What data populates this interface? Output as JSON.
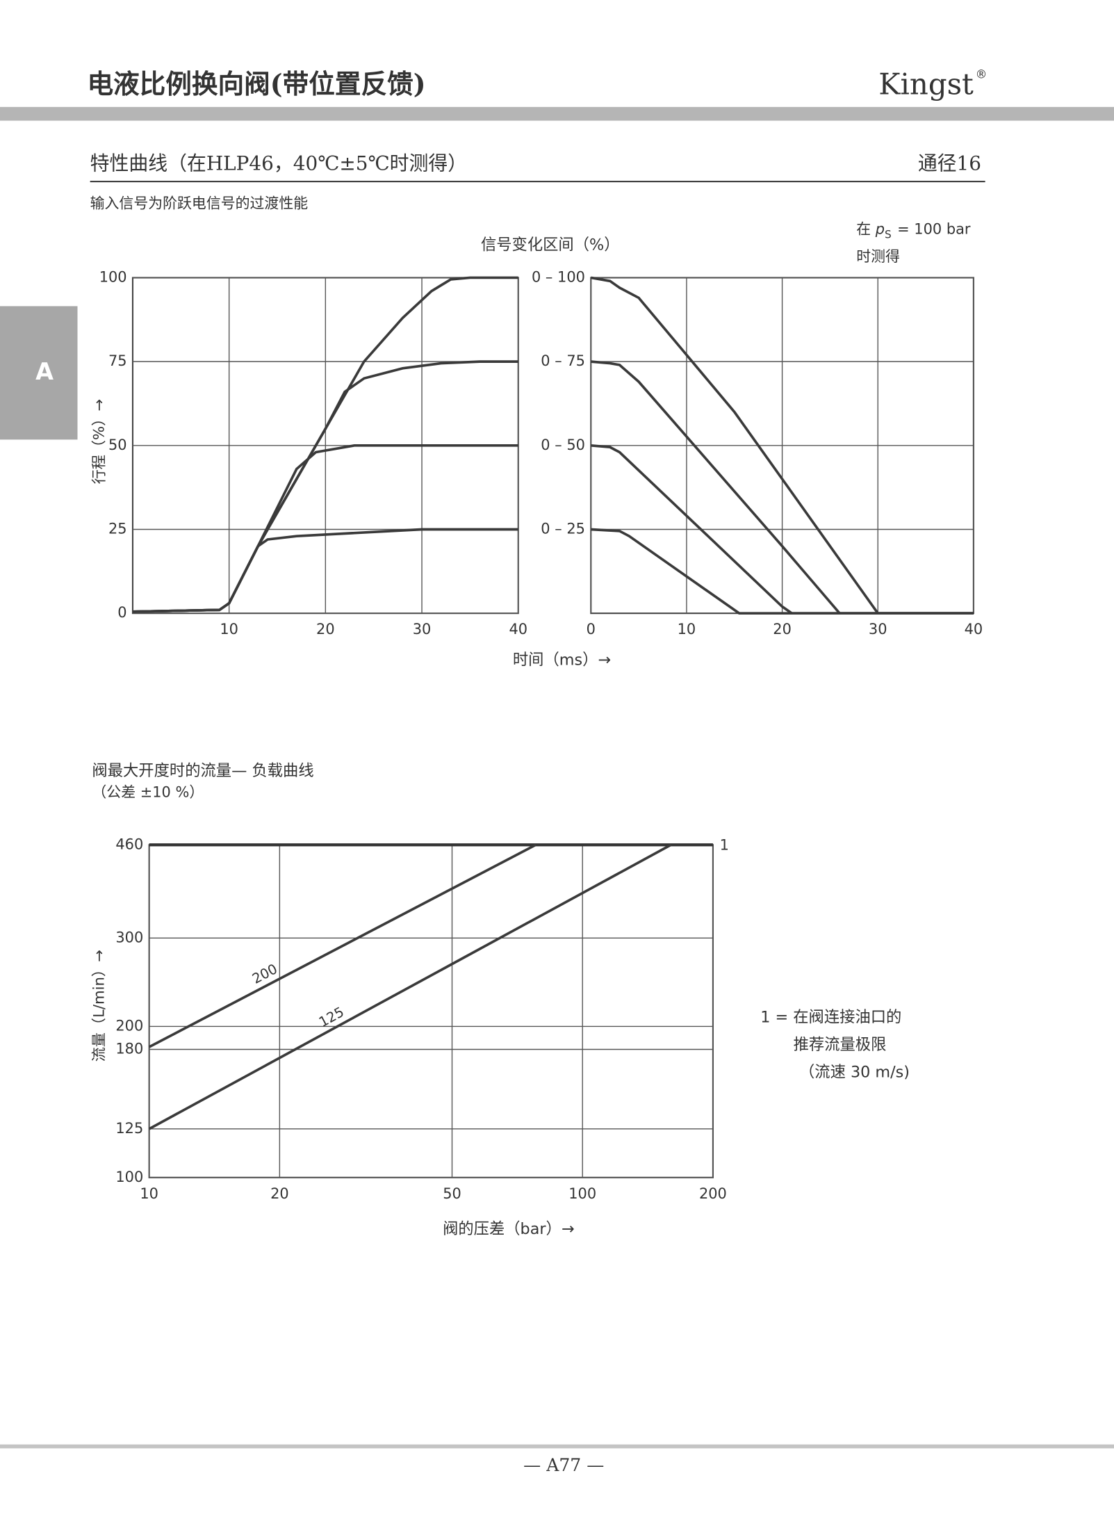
{
  "header": {
    "title": "电液比例换向阀(带位置反馈)",
    "brand": "Kingst",
    "brand_mark": "®",
    "section": "特性曲线（在HLP46，40℃±5℃时测得）",
    "size": "通径16",
    "tab": "A"
  },
  "subtitle": "输入信号为阶跃电信号的过渡性能",
  "note": {
    "pre": "在",
    "p": "p",
    "sub": "S",
    "post": "= 100 bar",
    "line2": "时测得"
  },
  "footer": "— A77 —",
  "chart_data": [
    {
      "type": "line",
      "ylabel": "行程（%）→",
      "xlabel": "时间（ms）→",
      "xlim": [
        0,
        40
      ],
      "ylim": [
        0,
        100
      ],
      "xticks": [
        10,
        20,
        30,
        40
      ],
      "yticks": [
        0,
        25,
        50,
        75,
        100
      ],
      "grid": true,
      "series": [
        {
          "color": "#3a3a3a",
          "x": [
            0,
            9,
            10,
            13,
            17,
            20,
            24,
            28,
            31,
            33,
            35,
            40
          ],
          "values": [
            0.5,
            1,
            3,
            20,
            40,
            55,
            75,
            88,
            96,
            99.5,
            100,
            100
          ]
        },
        {
          "color": "#3a3a3a",
          "x": [
            0,
            9,
            10,
            13,
            17,
            20,
            22,
            24,
            28,
            32,
            36,
            40
          ],
          "values": [
            0.5,
            1,
            3,
            20,
            40,
            55,
            66,
            70,
            73,
            74.5,
            75,
            75
          ]
        },
        {
          "color": "#3a3a3a",
          "x": [
            0,
            9,
            10,
            13,
            17,
            19,
            23,
            40
          ],
          "values": [
            0.5,
            1,
            3,
            20,
            43,
            48,
            50,
            50
          ]
        },
        {
          "color": "#3a3a3a",
          "x": [
            0,
            9,
            10,
            13,
            14,
            17,
            30,
            40
          ],
          "values": [
            0.5,
            1,
            3,
            20,
            22,
            23,
            25,
            25
          ]
        }
      ]
    },
    {
      "type": "line",
      "title": "信号变化区间（%）",
      "xlim": [
        0,
        40
      ],
      "ylim": [
        0,
        100
      ],
      "xticks": [
        0,
        10,
        20,
        30,
        40
      ],
      "yticks": [
        {
          "value": 25,
          "label": "0 – 25"
        },
        {
          "value": 50,
          "label": "0 – 50"
        },
        {
          "value": 75,
          "label": "0 – 75"
        },
        {
          "value": 100,
          "label": "0 – 100"
        }
      ],
      "grid": true,
      "series": [
        {
          "color": "#3a3a3a",
          "x": [
            0,
            2,
            3,
            5,
            15,
            30,
            40
          ],
          "values": [
            100,
            99,
            97,
            94,
            60,
            0,
            0
          ]
        },
        {
          "color": "#3a3a3a",
          "x": [
            0,
            2,
            3,
            5,
            20,
            26,
            40
          ],
          "values": [
            75,
            74.5,
            74,
            69,
            20,
            0,
            0
          ]
        },
        {
          "color": "#3a3a3a",
          "x": [
            0,
            2,
            3,
            20,
            21,
            40
          ],
          "values": [
            50,
            49.5,
            48,
            2,
            0,
            0
          ]
        },
        {
          "color": "#3a3a3a",
          "x": [
            0,
            3,
            4,
            15.5,
            40
          ],
          "values": [
            25,
            24.5,
            23,
            0,
            0
          ]
        }
      ]
    },
    {
      "type": "line",
      "title": "阀最大开度时的流量— 负载曲线",
      "subtitle": "（公差 ±10 %）",
      "ylabel": "流量（L/min）→",
      "xlabel": "阀的压差（bar）→",
      "xlog": true,
      "ylog": true,
      "xlim": [
        10,
        200
      ],
      "ylim": [
        100,
        460
      ],
      "xticks": [
        10,
        20,
        50,
        100,
        200
      ],
      "yticks": [
        100,
        125,
        180,
        200,
        300,
        460
      ],
      "grid": true,
      "annotation": "1",
      "note": [
        "1 = 在阀连接油口的",
        "推荐流量极限",
        "（流速 30 m/s)"
      ],
      "series": [
        {
          "name": "200",
          "color": "#3a3a3a",
          "x": [
            10,
            78
          ],
          "values": [
            182,
            460
          ]
        },
        {
          "name": "125",
          "color": "#3a3a3a",
          "x": [
            10,
            160
          ],
          "values": [
            125,
            460
          ]
        }
      ]
    }
  ]
}
